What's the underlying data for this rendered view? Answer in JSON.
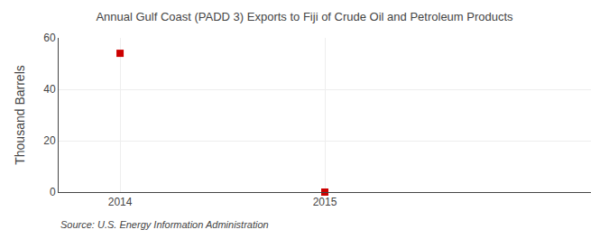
{
  "chart_data": {
    "type": "scatter",
    "title": "Annual Gulf Coast (PADD 3) Exports to Fiji of Crude Oil and Petroleum Products",
    "ylabel": "Thousand Barrels",
    "source": "Source: U.S. Energy Information Administration",
    "x": [
      2014,
      2015
    ],
    "values": [
      54,
      0
    ],
    "color": "#cc0000",
    "marker": "square",
    "xlim": [
      2013.7,
      2016.3
    ],
    "xticks": [
      2014,
      2015
    ],
    "ylim": [
      0,
      60
    ],
    "yticks": [
      0,
      20,
      40,
      60
    ],
    "grid": true
  }
}
